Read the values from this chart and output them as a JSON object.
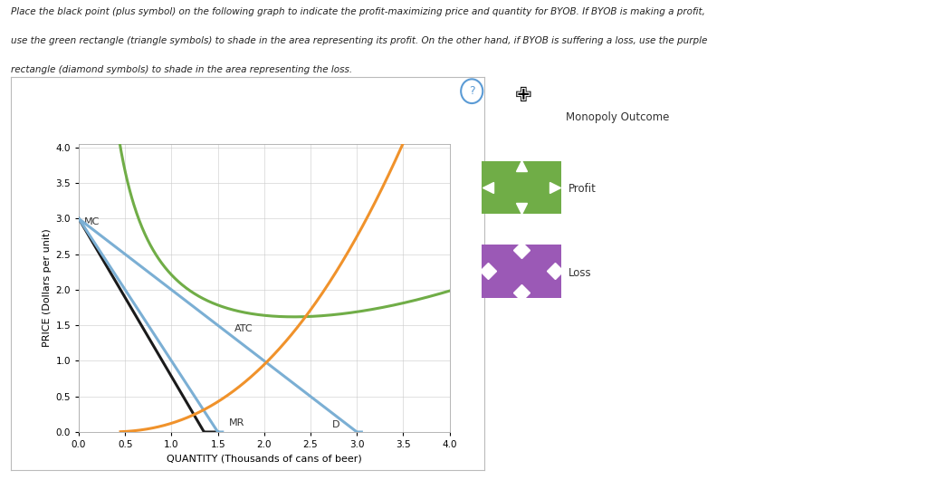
{
  "line1": "Place the black point (plus symbol) on the following graph to indicate the profit-maximizing price and quantity for BYOB. If BYOB is making a profit,",
  "line2": "use the green rectangle (triangle symbols) to shade in the area representing its profit. On the other hand, if BYOB is suffering a loss, use the purple",
  "line3": "rectangle (diamond symbols) to shade in the area representing the loss.",
  "xlabel": "QUANTITY (Thousands of cans of beer)",
  "ylabel": "PRICE (Dollars per unit)",
  "xlim": [
    0,
    4.0
  ],
  "ylim": [
    0,
    4.05
  ],
  "xticks": [
    0,
    0.5,
    1.0,
    1.5,
    2.0,
    2.5,
    3.0,
    3.5,
    4.0
  ],
  "yticks": [
    0,
    0.5,
    1.0,
    1.5,
    2.0,
    2.5,
    3.0,
    3.5,
    4.0
  ],
  "mc_color": "#1a1a1a",
  "blue_color": "#7bafd4",
  "atc_color": "#70ad47",
  "orange_color": "#f0922b",
  "green_color": "#70ad47",
  "purple_color": "#9b59b6",
  "bg_color": "#ffffff",
  "grid_color": "#cccccc",
  "legend_monopoly_label": "Monopoly Outcome",
  "legend_profit_label": "Profit",
  "legend_loss_label": "Loss"
}
